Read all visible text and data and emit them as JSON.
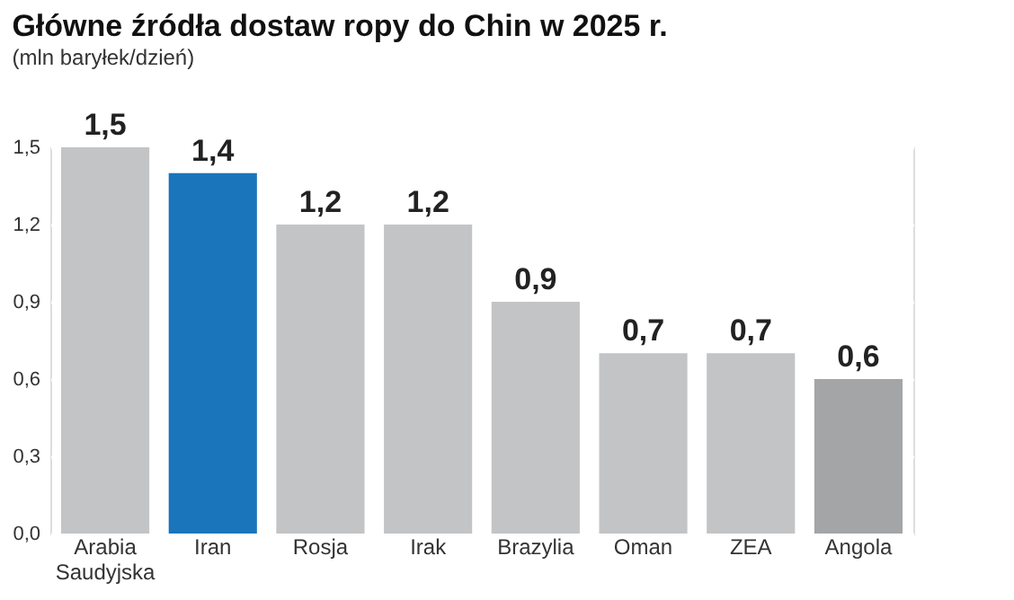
{
  "chart_data": {
    "type": "bar",
    "title": "Główne źródła dostaw ropy do Chin w 2025 r.",
    "subtitle": "(mln baryłek/dzień)",
    "categories": [
      "Arabia Saudyjska",
      "Iran",
      "Rosja",
      "Irak",
      "Brazylia",
      "Oman",
      "ZEA",
      "Angola"
    ],
    "values": [
      1.5,
      1.4,
      1.2,
      1.2,
      0.9,
      0.7,
      0.7,
      0.6
    ],
    "colors": [
      "#c3c4c6",
      "#1a75bb",
      "#c3c4c6",
      "#c3c4c6",
      "#c3c4c6",
      "#c3c4c6",
      "#c3c4c6",
      "#a4a5a7"
    ],
    "value_labels": [
      "1,5",
      "1,4",
      "1,2",
      "1,2",
      "0,9",
      "0,7",
      "0,7",
      "0,6"
    ],
    "ylim": [
      0,
      1.5
    ],
    "yticks": [
      {
        "value": 0,
        "label": "0,0"
      },
      {
        "value": 0.3,
        "label": "0,3"
      },
      {
        "value": 0.6,
        "label": "0,6"
      },
      {
        "value": 0.9,
        "label": "0,9"
      },
      {
        "value": 1.2,
        "label": "1,2"
      },
      {
        "value": 1.5,
        "label": "1,5"
      }
    ],
    "grid": "y"
  }
}
